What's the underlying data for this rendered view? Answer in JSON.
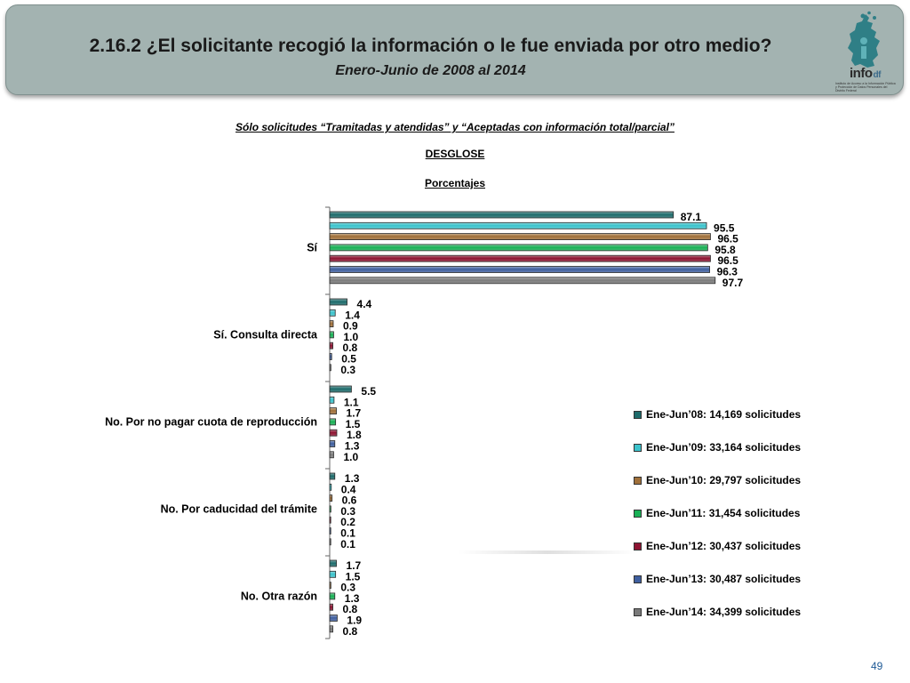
{
  "header": {
    "title": "2.16.2 ¿El solicitante recogió la información o le fue enviada por otro medio?",
    "subtitle": "Enero-Junio  de 2008 al 2014",
    "logo_text": "info",
    "logo_suffix": "df",
    "logo_caption": "Instituto de Acceso a la Información Pública y Protección de Datos Personales del Distrito Federal"
  },
  "note": "Sólo solicitudes “Tramitadas y atendidas” y “Aceptadas con información total/parcial”",
  "breakdown_label": "DESGLOSE",
  "unit_label": "Porcentajes",
  "page_number": "49",
  "colors": {
    "header_bg": "#a3b3b1",
    "page_number": "#1f5a96"
  },
  "chart_data": {
    "type": "bar",
    "orientation": "horizontal",
    "categories": [
      "Sí",
      "Sí. Consulta directa",
      "No. Por no pagar cuota de reproducción",
      "No. Por caducidad del trámite",
      "No. Otra razón"
    ],
    "series": [
      {
        "name": "Ene-Jun’08: 14,169 solicitudes",
        "color": "#1e6b6b",
        "values": [
          87.1,
          4.4,
          5.5,
          1.3,
          1.7
        ],
        "labels": [
          "87.1",
          "4.4",
          "5.5",
          "1.3",
          "1.7"
        ]
      },
      {
        "name": "Ene-Jun’09: 33,164 solicitudes",
        "color": "#3cc3cc",
        "values": [
          95.5,
          1.4,
          1.1,
          0.4,
          1.5
        ],
        "labels": [
          "95.5",
          "1.4",
          "1.1",
          "0.4",
          "1.5"
        ]
      },
      {
        "name": "Ene-Jun’10: 29,797 solicitudes",
        "color": "#a0703a",
        "values": [
          96.5,
          0.9,
          1.7,
          0.6,
          0.3
        ],
        "labels": [
          "96.5",
          "0.9",
          "1.7",
          "0.6",
          "0.3"
        ]
      },
      {
        "name": "Ene-Jun’11: 31,454 solicitudes",
        "color": "#19b055",
        "values": [
          95.8,
          1.0,
          1.5,
          0.3,
          1.3
        ],
        "labels": [
          "95.8",
          "1.0",
          "1.5",
          "0.3",
          "1.3"
        ]
      },
      {
        "name": "Ene-Jun’12: 30,437 solicitudes",
        "color": "#8e1432",
        "values": [
          96.5,
          0.8,
          1.8,
          0.2,
          0.8
        ],
        "labels": [
          "96.5",
          "0.8",
          "1.8",
          "0.2",
          "0.8"
        ]
      },
      {
        "name": "Ene-Jun’13: 30,487 solicitudes",
        "color": "#3f5f9f",
        "values": [
          96.3,
          0.5,
          1.3,
          0.1,
          1.9
        ],
        "labels": [
          "96.3",
          "0.5",
          "1.3",
          "0.1",
          "1.9"
        ]
      },
      {
        "name": "Ene-Jun’14: 34,399 solicitudes",
        "color": "#7a7a7a",
        "values": [
          97.7,
          0.3,
          1.0,
          0.1,
          0.8
        ],
        "labels": [
          "97.7",
          "0.3",
          "1.0",
          "0.1",
          "0.8"
        ]
      }
    ],
    "grid": false,
    "legend_position": "right"
  }
}
